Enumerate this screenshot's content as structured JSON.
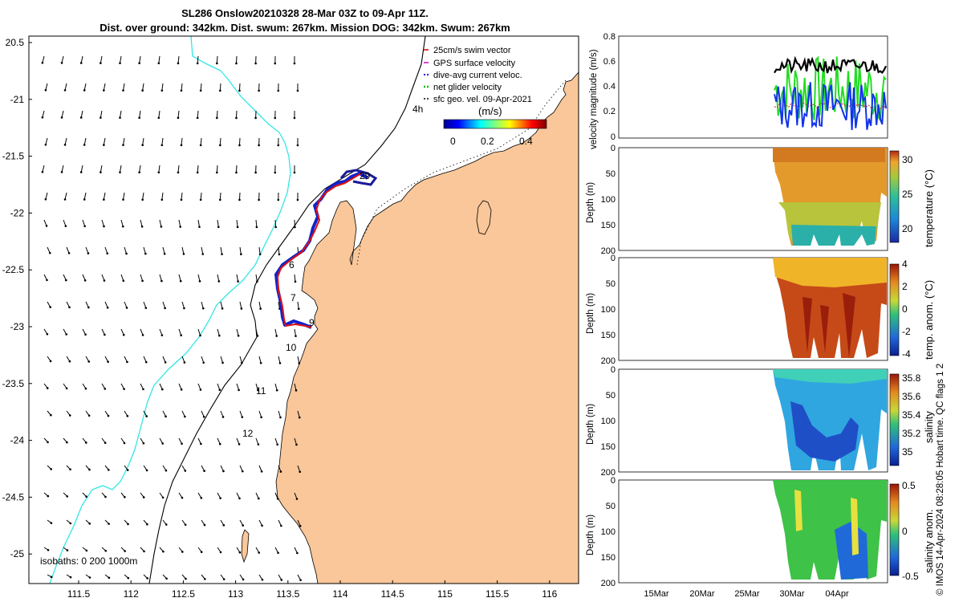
{
  "title": {
    "line1": "SL286 Onslow20210328 28-Mar 03Z to 09-Apr 11Z.",
    "line2": "Dist. over ground: 342km. Dist. swum: 267km. Mission DOG: 342km. Swum: 267km"
  },
  "map": {
    "lat_ticks": [
      "20.5",
      "-21",
      "-21.5",
      "-22",
      "-22.5",
      "-23",
      "-23.5",
      "-24",
      "-24.5",
      "-25"
    ],
    "lon_ticks": [
      "111.5",
      "112",
      "112.5",
      "113",
      "113.5",
      "114",
      "114.5",
      "115",
      "115.5",
      "116"
    ],
    "day_labels": [
      "4h",
      "29",
      "6",
      "7",
      "9",
      "10",
      "11",
      "12"
    ],
    "isobath_label": "isobaths: 0   200  1000m",
    "colors": {
      "land": "#f9c79a",
      "isobath_0_200": "#000000",
      "isobath_1000": "#33e6e6",
      "track_gps": "#dd1111",
      "track_dac": "#1122cc"
    }
  },
  "legend": {
    "items": [
      {
        "label": "25cm/s swim vector",
        "color": "#cc0000",
        "marker": "line"
      },
      {
        "label": "GPS surface velocity",
        "color": "#cc00cc",
        "marker": "line"
      },
      {
        "label": "dive-avg current veloc.",
        "color": "#1111dd",
        "marker": "dash"
      },
      {
        "label": "net glider velocity",
        "color": "#00bb00",
        "marker": "dash"
      },
      {
        "label": "sfc geo. vel. 09-Apr-2021",
        "color": "#000000",
        "marker": "dash"
      }
    ],
    "colorbar_label": "(m/s)",
    "colorbar_ticks": [
      "0",
      "0.2",
      "0.4"
    ]
  },
  "panels": {
    "velocity": {
      "ylabel": "velocity magnitude (m/s)",
      "yticks": [
        "0",
        "0.2",
        "0.4",
        "0.6",
        "0.8"
      ]
    },
    "temperature": {
      "ylabel": "Depth (m)",
      "yticks": [
        "0",
        "50",
        "100",
        "150",
        "200"
      ],
      "cbar_label": "temperature (°C)",
      "cbar_ticks": [
        "30",
        "25",
        "20"
      ]
    },
    "temp_anom": {
      "ylabel": "Depth (m)",
      "yticks": [
        "0",
        "50",
        "100",
        "150",
        "200"
      ],
      "cbar_label": "temp. anom. (°C)",
      "cbar_ticks": [
        "4",
        "2",
        "0",
        "-2",
        "-4"
      ]
    },
    "salinity": {
      "ylabel": "Depth (m)",
      "yticks": [
        "0",
        "50",
        "100",
        "150",
        "200"
      ],
      "cbar_label": "salinity",
      "cbar_ticks": [
        "35.8",
        "35.6",
        "35.4",
        "35.2",
        "35"
      ]
    },
    "sal_anom": {
      "ylabel": "Depth (m)",
      "yticks": [
        "0",
        "50",
        "100",
        "150",
        "200"
      ],
      "cbar_label": "salinity anom.",
      "cbar_ticks": [
        "0.5",
        "0",
        "-0.5"
      ],
      "xticks": [
        "15Mar",
        "20Mar",
        "25Mar",
        "30Mar",
        "04Apr"
      ]
    }
  },
  "stamp": "© IMOS 14-Apr-2024 08:28:05 Hobart time. QC flags 1  2"
}
